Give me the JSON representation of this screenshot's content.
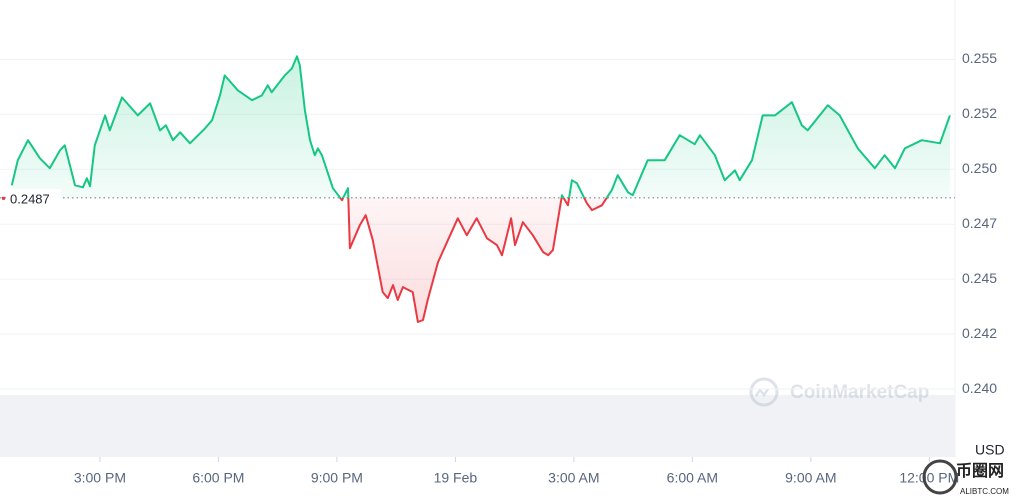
{
  "chart_data": {
    "type": "line",
    "x": [
      12.77,
      12.92,
      13.18,
      13.48,
      13.73,
      13.99,
      14.11,
      14.24,
      14.37,
      14.57,
      14.67,
      14.75,
      14.87,
      15.13,
      15.25,
      15.56,
      15.96,
      16.27,
      16.52,
      16.67,
      16.85,
      17.03,
      17.28,
      17.66,
      17.84,
      18.04,
      18.16,
      18.49,
      18.85,
      19.1,
      19.25,
      19.35,
      19.68,
      19.86,
      19.99,
      20.06,
      20.19,
      20.32,
      20.44,
      20.52,
      20.62,
      20.9,
      21.13,
      21.28,
      21.33,
      21.58,
      21.73,
      21.91,
      22.16,
      22.29,
      22.42,
      22.54,
      22.67,
      22.92,
      23.05,
      23.18,
      23.3,
      23.56,
      23.81,
      24.06,
      24.29,
      24.54,
      24.8,
      25.05,
      25.18,
      25.41,
      25.51,
      25.71,
      25.96,
      26.22,
      26.35,
      26.47,
      26.7,
      26.85,
      26.95,
      27.08,
      27.33,
      27.46,
      27.71,
      27.96,
      28.11,
      28.37,
      28.49,
      28.87,
      29.3,
      29.68,
      30.06,
      30.19,
      30.57,
      30.82,
      31.08,
      31.2,
      31.51,
      31.78,
      32.09,
      32.52,
      32.77,
      32.92,
      33.43,
      33.73,
      34.19,
      34.62,
      34.87,
      35.13,
      35.38,
      35.81,
      36.27,
      36.52
    ],
    "values": [
      0.24927,
      0.25041,
      0.25132,
      0.2505,
      0.25005,
      0.25086,
      0.25109,
      0.25018,
      0.24927,
      0.24918,
      0.24959,
      0.24923,
      0.25109,
      0.25245,
      0.25177,
      0.25327,
      0.25245,
      0.253,
      0.25177,
      0.252,
      0.25132,
      0.25168,
      0.25118,
      0.25186,
      0.25223,
      0.25336,
      0.25427,
      0.25359,
      0.25314,
      0.25336,
      0.25382,
      0.2535,
      0.25427,
      0.25459,
      0.25514,
      0.25473,
      0.25268,
      0.25132,
      0.25064,
      0.25095,
      0.25064,
      0.24914,
      0.24859,
      0.24914,
      0.24641,
      0.24745,
      0.24791,
      0.24677,
      0.24441,
      0.24414,
      0.24473,
      0.24405,
      0.24464,
      0.24441,
      0.24305,
      0.24314,
      0.24405,
      0.24577,
      0.24677,
      0.24777,
      0.247,
      0.24777,
      0.24686,
      0.24655,
      0.24609,
      0.24777,
      0.24655,
      0.24759,
      0.247,
      0.24623,
      0.24609,
      0.24632,
      0.24882,
      0.24836,
      0.2495,
      0.24936,
      0.24845,
      0.24814,
      0.24836,
      0.24905,
      0.24973,
      0.24895,
      0.24882,
      0.25041,
      0.25041,
      0.25155,
      0.25114,
      0.25155,
      0.25064,
      0.2495,
      0.24995,
      0.2495,
      0.25041,
      0.25245,
      0.25245,
      0.25305,
      0.252,
      0.25177,
      0.25291,
      0.25245,
      0.25095,
      0.25005,
      0.25064,
      0.25005,
      0.25095,
      0.25132,
      0.25118,
      0.25245
    ],
    "baseline": 0.2487,
    "color_above": "#16c784",
    "color_below": "#ea3943",
    "xlim": [
      12.47,
      36.65
    ],
    "xticks": [
      {
        "value": 15,
        "label": "3:00 PM"
      },
      {
        "value": 18,
        "label": "6:00 PM"
      },
      {
        "value": 21,
        "label": "9:00 PM"
      },
      {
        "value": 24,
        "label": "19 Feb"
      },
      {
        "value": 27,
        "label": "3:00 AM"
      },
      {
        "value": 30,
        "label": "6:00 AM"
      },
      {
        "value": 33,
        "label": "9:00 AM"
      },
      {
        "value": 36,
        "label": "12:00 PM"
      }
    ],
    "ylim": [
      0.237,
      0.2577
    ],
    "yticks": [
      {
        "value": 0.24,
        "label": "0.240"
      },
      {
        "value": 0.2425,
        "label": "0.242"
      },
      0.245,
      {
        "value": 0.2475,
        "label": "0.247"
      },
      {
        "value": 0.25,
        "label": "0.250"
      },
      {
        "value": 0.2525,
        "label": "0.252"
      },
      0.255
    ],
    "y_unit": "USD",
    "grid": true,
    "watermark": "CoinMarketCap",
    "overlay": {
      "name": "币圈网",
      "url": "ALIBTC.COM"
    }
  }
}
